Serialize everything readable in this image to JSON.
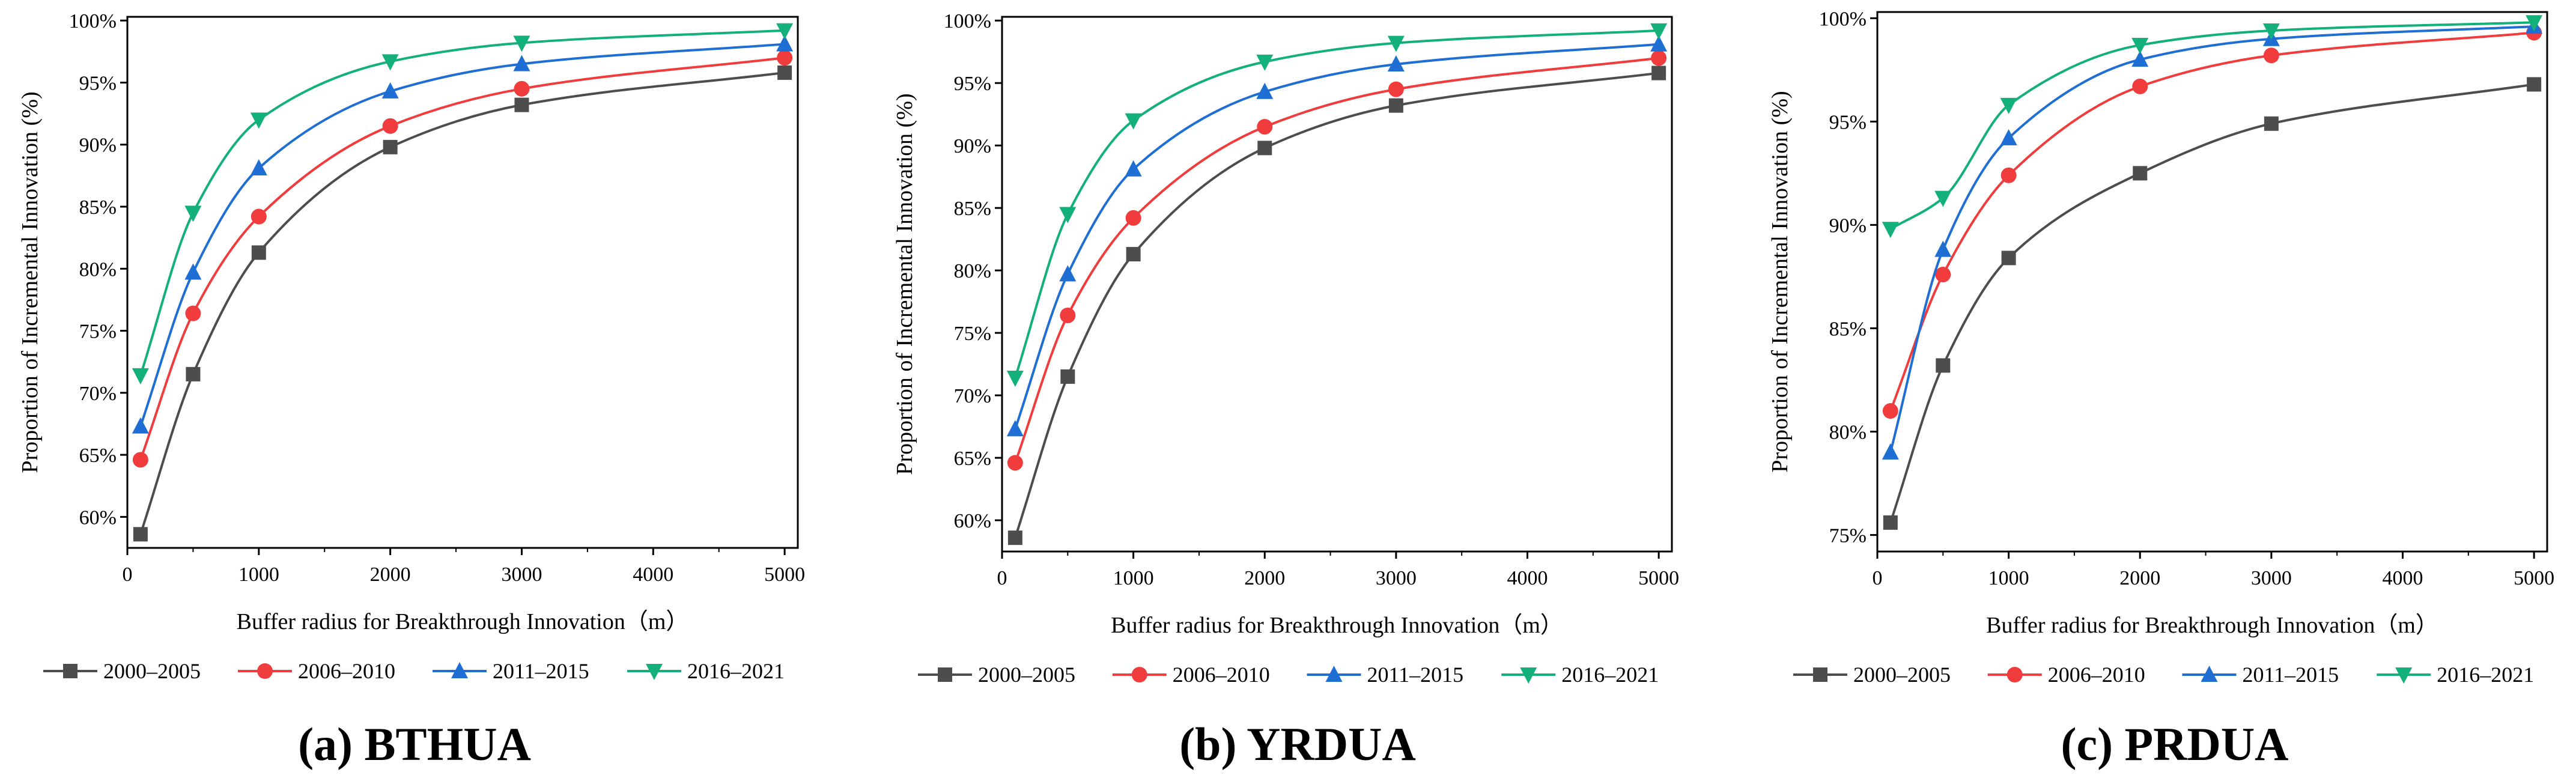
{
  "series_colors": [
    "#4d4d4d",
    "#f03c3c",
    "#1f6ed4",
    "#13b07a"
  ],
  "chart_data": [
    {
      "type": "line",
      "caption": "(a) BTHUA",
      "xlabel": "Buffer radius for Breakthrough Innovation（m）",
      "ylabel": "Proportion of Incremental Innovation (%)",
      "xlim": [
        0,
        5100
      ],
      "ylim": [
        57.5,
        100.3
      ],
      "xticks": [
        0,
        1000,
        2000,
        3000,
        4000,
        5000
      ],
      "xtick_labels": [
        "0",
        "1000",
        "2000",
        "3000",
        "4000",
        "5000"
      ],
      "yticks": [
        60,
        65,
        70,
        75,
        80,
        85,
        90,
        95,
        100
      ],
      "ytick_labels": [
        "60%",
        "65%",
        "70%",
        "75%",
        "80%",
        "85%",
        "90%",
        "95%",
        "100%"
      ],
      "x": [
        100,
        500,
        1000,
        2000,
        3000,
        5000
      ],
      "series": [
        {
          "name": "2000–2005",
          "marker": "square",
          "values": [
            58.6,
            71.5,
            81.3,
            89.8,
            93.2,
            95.8
          ]
        },
        {
          "name": "2006–2010",
          "marker": "circle",
          "values": [
            64.6,
            76.4,
            84.2,
            91.5,
            94.5,
            97.0
          ]
        },
        {
          "name": "2011–2015",
          "marker": "triangle-up",
          "values": [
            67.3,
            79.7,
            88.1,
            94.3,
            96.5,
            98.1
          ]
        },
        {
          "name": "2016–2021",
          "marker": "triangle-down",
          "values": [
            71.4,
            84.5,
            92.0,
            96.7,
            98.2,
            99.2
          ]
        }
      ]
    },
    {
      "type": "line",
      "caption": "(b) YRDUA",
      "xlabel": "Buffer radius for Breakthrough Innovation（m）",
      "ylabel": "Proportion of Incremental Innovation (%)",
      "xlim": [
        0,
        5100
      ],
      "ylim": [
        57.5,
        100.3
      ],
      "xticks": [
        0,
        1000,
        2000,
        3000,
        4000,
        5000
      ],
      "xtick_labels": [
        "0",
        "1000",
        "2000",
        "3000",
        "4000",
        "5000"
      ],
      "yticks": [
        60,
        65,
        70,
        75,
        80,
        85,
        90,
        95,
        100
      ],
      "ytick_labels": [
        "60%",
        "65%",
        "70%",
        "75%",
        "80%",
        "85%",
        "90%",
        "95%",
        "100%"
      ],
      "x": [
        100,
        500,
        1000,
        2000,
        3000,
        5000
      ],
      "series": [
        {
          "name": "2000–2005",
          "marker": "square",
          "values": [
            58.6,
            71.5,
            81.3,
            89.8,
            93.2,
            95.8
          ]
        },
        {
          "name": "2006–2010",
          "marker": "circle",
          "values": [
            64.6,
            76.4,
            84.2,
            91.5,
            94.5,
            97.0
          ]
        },
        {
          "name": "2011–2015",
          "marker": "triangle-up",
          "values": [
            67.3,
            79.7,
            88.1,
            94.3,
            96.5,
            98.1
          ]
        },
        {
          "name": "2016–2021",
          "marker": "triangle-down",
          "values": [
            71.4,
            84.5,
            92.0,
            96.7,
            98.2,
            99.2
          ]
        }
      ]
    },
    {
      "type": "line",
      "caption": "(c) PRDUA",
      "xlabel": "Buffer radius for Breakthrough Innovation（m）",
      "ylabel": "Proportion of Incremental Innovation (%)",
      "xlim": [
        0,
        5100
      ],
      "ylim": [
        74.2,
        100.3
      ],
      "xticks": [
        0,
        1000,
        2000,
        3000,
        4000,
        5000
      ],
      "xtick_labels": [
        "0",
        "1000",
        "2000",
        "3000",
        "4000",
        "5000"
      ],
      "yticks": [
        75,
        80,
        85,
        90,
        95,
        100
      ],
      "ytick_labels": [
        "75%",
        "80%",
        "85%",
        "90%",
        "95%",
        "100%"
      ],
      "x": [
        100,
        500,
        1000,
        2000,
        3000,
        5000
      ],
      "series": [
        {
          "name": "2000–2005",
          "marker": "square",
          "values": [
            75.6,
            83.2,
            88.4,
            92.5,
            94.9,
            96.8
          ]
        },
        {
          "name": "2006–2010",
          "marker": "circle",
          "values": [
            81.0,
            87.6,
            92.4,
            96.7,
            98.2,
            99.3
          ]
        },
        {
          "name": "2011–2015",
          "marker": "triangle-up",
          "values": [
            79.0,
            88.8,
            94.2,
            98.0,
            99.0,
            99.6
          ]
        },
        {
          "name": "2016–2021",
          "marker": "triangle-down",
          "values": [
            89.8,
            91.3,
            95.8,
            98.7,
            99.4,
            99.8
          ]
        }
      ]
    }
  ]
}
